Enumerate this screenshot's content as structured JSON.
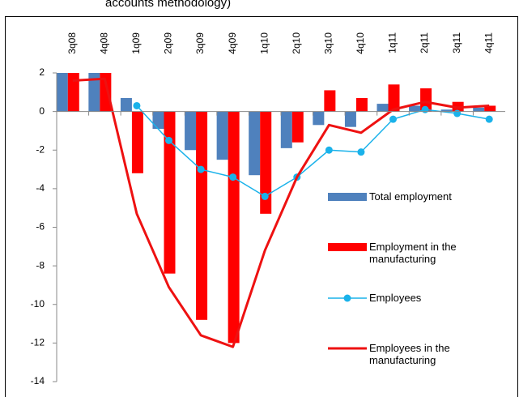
{
  "chart_data": {
    "type": "bar-line",
    "title": "accounts methodology)",
    "categories": [
      "3q08",
      "4q08",
      "1q09",
      "2q09",
      "3q09",
      "4q09",
      "1q10",
      "2q10",
      "3q10",
      "4q10",
      "1q11",
      "2q11",
      "3q11",
      "4q11"
    ],
    "series": [
      {
        "name": "Total employment",
        "type": "bar",
        "color": "#4f81bd",
        "values": [
          2,
          2,
          0.7,
          -0.9,
          -2.0,
          -2.5,
          -3.3,
          -1.9,
          -0.7,
          -0.8,
          0.4,
          0.3,
          0.1,
          0.2
        ]
      },
      {
        "name": "Employment in the manufacturing",
        "type": "bar",
        "color": "#ff0000",
        "values": [
          2,
          2,
          -3.2,
          -8.4,
          -10.8,
          -12.0,
          -5.3,
          -1.6,
          1.1,
          0.7,
          1.4,
          1.2,
          0.5,
          0.3
        ]
      },
      {
        "name": "Employees",
        "type": "line",
        "color": "#1ab2ea",
        "marker": true,
        "values": [
          null,
          null,
          0.3,
          -1.5,
          -3.0,
          -3.4,
          -4.4,
          -3.4,
          -2.0,
          -2.1,
          -0.4,
          0.1,
          -0.1,
          -0.4
        ]
      },
      {
        "name": "Employees in the manufacturing",
        "type": "line",
        "color": "#ee1111",
        "marker": false,
        "values": [
          1.6,
          1.7,
          -5.3,
          -9.1,
          -11.6,
          -12.2,
          -7.2,
          -3.4,
          -0.7,
          -1.1,
          0.1,
          0.5,
          0.2,
          0.3
        ]
      }
    ],
    "ylim": [
      -14,
      2
    ],
    "yticks": [
      -14,
      -12,
      -10,
      -8,
      -6,
      -4,
      -2,
      0,
      2
    ],
    "grid": false,
    "legend": "right"
  }
}
